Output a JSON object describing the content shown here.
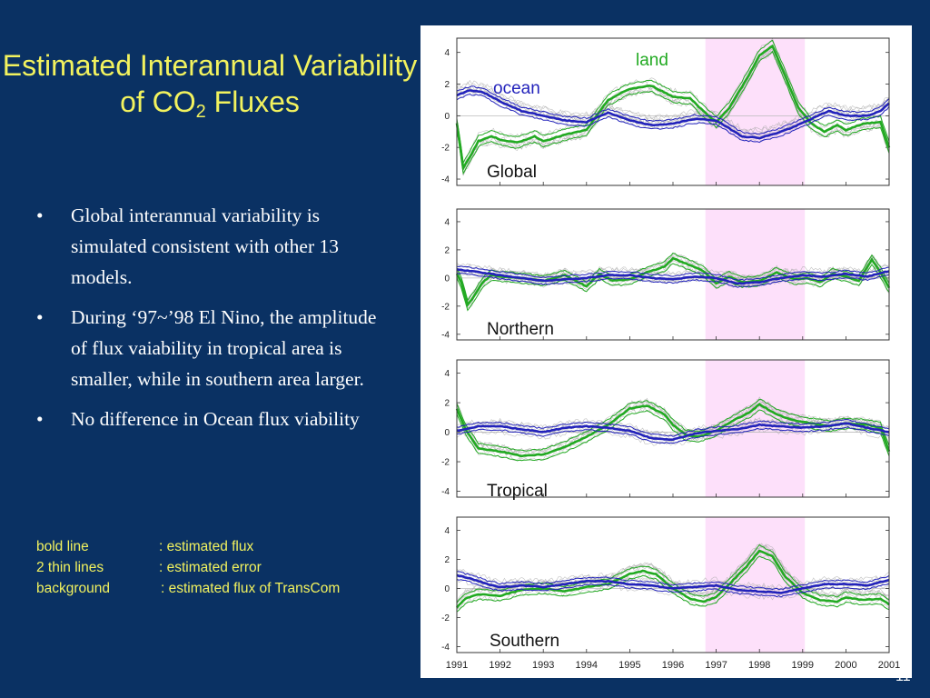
{
  "slide": {
    "title_main": "Estimated Interannual Variability of CO",
    "title_sub": "2",
    "title_tail": " Fluxes",
    "bullets": [
      "Global interannual variability is simulated consistent with other 13 models.",
      "During ‘97~’98 El Nino, the amplitude of flux vaiability in tropical area is smaller, while in southern area larger.",
      "No difference in Ocean flux viability"
    ],
    "bullet_symbol": "•",
    "legend": [
      {
        "key": "bold  line",
        "value": ": estimated flux"
      },
      {
        "key": "2 thin  lines",
        "value": ": estimated error"
      },
      {
        "key": "background",
        "value": ": estimated flux of TransCom"
      }
    ],
    "page_number": "11"
  },
  "colors": {
    "background": "#0a3163",
    "title": "#f2f25e",
    "land": "#22aa22",
    "ocean": "#2222bb",
    "el_nino_band": "#fde0fa",
    "transcom": "#a6a6a6"
  },
  "chart_data": [
    {
      "type": "line",
      "panel_label": "Global",
      "series_labels": [
        "land",
        "ocean"
      ],
      "yticks": [
        "4",
        "2",
        "0",
        "-2",
        "-4"
      ],
      "ylim": [
        -4.4,
        4.9
      ],
      "xlim": [
        1991,
        2001
      ],
      "highlight_x": [
        1996.75,
        1999.05
      ],
      "series": [
        {
          "name": "land",
          "x": [
            1991,
            1991.15,
            1991.3,
            1991.5,
            1991.8,
            1992,
            1992.4,
            1992.8,
            1993,
            1993.5,
            1994,
            1994.5,
            1995,
            1995.5,
            1996,
            1996.4,
            1996.7,
            1997,
            1997.3,
            1997.7,
            1998,
            1998.3,
            1998.6,
            1998.9,
            1999.2,
            1999.5,
            1999.8,
            2000,
            2000.4,
            2000.8,
            2001
          ],
          "y": [
            -0.5,
            -3.3,
            -2.6,
            -1.6,
            -1.3,
            -1.5,
            -1.7,
            -1.3,
            -1.6,
            -1.2,
            -0.9,
            1.0,
            1.7,
            1.9,
            1.2,
            1.1,
            0.3,
            -0.4,
            0.5,
            2.3,
            3.8,
            4.4,
            2.5,
            0.5,
            -0.5,
            -1.0,
            -0.6,
            -0.9,
            -0.5,
            -0.4,
            -2.0
          ]
        },
        {
          "name": "ocean",
          "x": [
            1991,
            1991.3,
            1991.6,
            1992,
            1992.5,
            1993,
            1993.5,
            1994,
            1994.5,
            1995,
            1995.5,
            1996,
            1996.5,
            1997,
            1997.3,
            1997.6,
            1998,
            1998.4,
            1998.8,
            1999.2,
            1999.6,
            2000,
            2000.5,
            2000.8,
            2001
          ],
          "y": [
            1.3,
            1.6,
            1.5,
            0.9,
            0.3,
            0.0,
            -0.3,
            -0.4,
            0.2,
            -0.3,
            -0.6,
            -0.5,
            -0.2,
            -0.3,
            -0.8,
            -1.3,
            -1.4,
            -1.1,
            -0.7,
            -0.2,
            0.3,
            0.0,
            0.0,
            0.3,
            0.8
          ]
        }
      ]
    },
    {
      "type": "line",
      "panel_label": "Northern",
      "yticks": [
        "4",
        "2",
        "0",
        "-2",
        "-4"
      ],
      "ylim": [
        -4.4,
        4.9
      ],
      "xlim": [
        1991,
        2001
      ],
      "highlight_x": [
        1996.75,
        1999.05
      ],
      "series": [
        {
          "name": "land",
          "x": [
            1991,
            1991.1,
            1991.25,
            1991.4,
            1991.6,
            1991.8,
            1992,
            1992.5,
            1993,
            1993.5,
            1994,
            1994.3,
            1994.6,
            1995,
            1995.4,
            1995.8,
            1996,
            1996.4,
            1996.7,
            1997,
            1997.3,
            1997.6,
            1998,
            1998.4,
            1998.8,
            1999.1,
            1999.4,
            1999.7,
            2000,
            2000.3,
            2000.6,
            2000.8,
            2001
          ],
          "y": [
            0.3,
            -0.3,
            -1.9,
            -1.3,
            -0.3,
            0.2,
            0.1,
            0.0,
            -0.2,
            0.2,
            -0.6,
            0.3,
            -0.2,
            -0.1,
            0.4,
            0.8,
            1.4,
            0.9,
            0.5,
            -0.4,
            0.1,
            -0.3,
            -0.2,
            0.4,
            -0.1,
            0.0,
            -0.3,
            0.3,
            0.1,
            -0.2,
            1.3,
            0.4,
            -0.7
          ]
        },
        {
          "name": "ocean",
          "x": [
            1991,
            1991.3,
            1992,
            1992.5,
            1993,
            1993.5,
            1994,
            1994.5,
            1995,
            1995.5,
            1996,
            1996.5,
            1997,
            1997.5,
            1998,
            1998.5,
            1999,
            1999.5,
            2000,
            2000.5,
            2001
          ],
          "y": [
            0.6,
            0.5,
            0.2,
            0.0,
            -0.2,
            -0.1,
            0.0,
            0.2,
            0.2,
            0.0,
            -0.1,
            0.1,
            0.0,
            -0.4,
            -0.3,
            0.0,
            0.2,
            0.1,
            0.3,
            0.1,
            0.5
          ]
        }
      ]
    },
    {
      "type": "line",
      "panel_label": "Tropical",
      "yticks": [
        "4",
        "2",
        "0",
        "-2",
        "-4"
      ],
      "ylim": [
        -4.4,
        4.9
      ],
      "xlim": [
        1991,
        2001
      ],
      "highlight_x": [
        1996.75,
        1999.05
      ],
      "series": [
        {
          "name": "land",
          "x": [
            1991,
            1991.2,
            1991.5,
            1992,
            1992.5,
            1993,
            1993.5,
            1994,
            1994.5,
            1995,
            1995.4,
            1995.8,
            1996,
            1996.3,
            1996.6,
            1997,
            1997.4,
            1997.8,
            1998,
            1998.4,
            1998.8,
            1999.2,
            1999.6,
            2000,
            2000.5,
            2000.8,
            2001
          ],
          "y": [
            1.6,
            0.2,
            -1.1,
            -1.3,
            -1.6,
            -1.5,
            -1.0,
            -0.3,
            0.5,
            1.6,
            1.8,
            1.2,
            0.5,
            -0.2,
            -0.3,
            0.1,
            0.8,
            1.4,
            1.9,
            1.2,
            0.8,
            0.6,
            0.4,
            0.6,
            0.5,
            0.3,
            -1.3
          ]
        },
        {
          "name": "ocean",
          "x": [
            1991,
            1991.5,
            1992,
            1992.5,
            1993,
            1993.5,
            1994,
            1994.5,
            1995,
            1995.5,
            1996,
            1996.5,
            1997,
            1997.5,
            1998,
            1998.5,
            1999,
            1999.5,
            2000,
            2000.5,
            2001
          ],
          "y": [
            0.1,
            0.4,
            0.4,
            0.2,
            0.0,
            0.3,
            0.4,
            0.3,
            0.1,
            -0.4,
            -0.5,
            -0.1,
            0.1,
            0.2,
            0.5,
            0.4,
            0.3,
            0.4,
            0.6,
            0.3,
            0.0
          ]
        }
      ]
    },
    {
      "type": "line",
      "panel_label": "Southern",
      "yticks": [
        "4",
        "2",
        "0",
        "-2",
        "-4"
      ],
      "ylim": [
        -4.4,
        4.9
      ],
      "xlim": [
        1991,
        2001
      ],
      "highlight_x": [
        1996.75,
        1999.05
      ],
      "series": [
        {
          "name": "land",
          "x": [
            1991,
            1991.2,
            1991.5,
            1992,
            1992.5,
            1993,
            1993.5,
            1994,
            1994.5,
            1995,
            1995.3,
            1995.6,
            1996,
            1996.4,
            1996.7,
            1997,
            1997.3,
            1997.7,
            1998,
            1998.3,
            1998.6,
            1999,
            1999.4,
            1999.8,
            2000,
            2000.4,
            2000.8,
            2001
          ],
          "y": [
            -1.3,
            -0.7,
            -0.4,
            -0.5,
            -0.1,
            0.0,
            -0.2,
            0.1,
            0.3,
            1.0,
            1.2,
            1.0,
            0.0,
            -0.7,
            -0.9,
            -0.6,
            0.3,
            1.5,
            2.6,
            2.2,
            0.8,
            -0.3,
            -0.8,
            -0.9,
            -0.6,
            -0.8,
            -0.7,
            -1.1
          ]
        },
        {
          "name": "ocean",
          "x": [
            1991,
            1991.3,
            1991.7,
            1992,
            1992.5,
            1993,
            1993.5,
            1994,
            1994.5,
            1995,
            1995.5,
            1996,
            1996.5,
            1997,
            1997.5,
            1998,
            1998.5,
            1999,
            1999.5,
            2000,
            2000.5,
            2001
          ],
          "y": [
            0.9,
            0.7,
            0.3,
            0.1,
            0.2,
            0.1,
            0.3,
            0.5,
            0.5,
            0.3,
            0.2,
            0.0,
            0.1,
            0.2,
            -0.1,
            -0.2,
            -0.3,
            0.0,
            0.3,
            0.3,
            0.2,
            0.6
          ]
        }
      ]
    }
  ],
  "x_ticks": [
    "1991",
    "1992",
    "1993",
    "1994",
    "1995",
    "1996",
    "1997",
    "1998",
    "1999",
    "2000",
    "2001"
  ]
}
